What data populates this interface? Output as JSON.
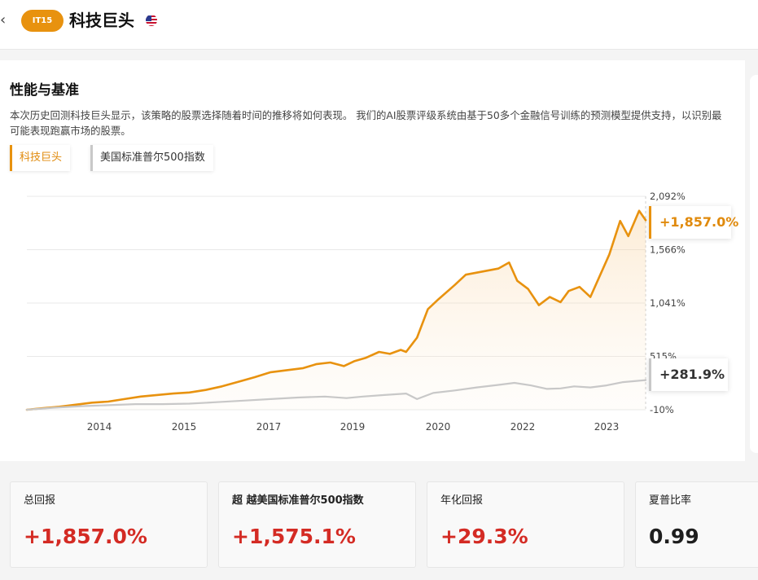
{
  "header": {
    "back_icon": "chevron-left-icon",
    "ticker": "IT15",
    "title": "科技巨头",
    "flag_icon": "us-flag-icon"
  },
  "section": {
    "title": "性能与基准",
    "description": "本次历史回测科技巨头显示，该策略的股票选择随着时间的推移将如何表现。 我们的AI股票评级系统由基于50多个金融信号训练的预测模型提供支持，以识别最可能表现跑赢市场的股票。"
  },
  "legend": {
    "strategy_label": "科技巨头",
    "benchmark_label": "美国标准普尔500指数"
  },
  "colors": {
    "strategy": "#e8920f",
    "benchmark": "#c8c8c8",
    "positive": "#d42b24"
  },
  "chart_data": {
    "type": "line",
    "x_ticks": [
      "2014",
      "2015",
      "2017",
      "2019",
      "2020",
      "2022",
      "2023"
    ],
    "y_ticks": [
      "2,092%",
      "1,566%",
      "1,041%",
      "515%",
      "-10%"
    ],
    "ylim": [
      -10,
      2092
    ],
    "grid": true,
    "series": [
      {
        "name": "科技巨头",
        "end_label": "+1,857.0%",
        "area": true,
        "points": [
          [
            2013.0,
            -10
          ],
          [
            2013.3,
            5
          ],
          [
            2013.6,
            20
          ],
          [
            2013.9,
            40
          ],
          [
            2014.2,
            60
          ],
          [
            2014.5,
            70
          ],
          [
            2014.8,
            95
          ],
          [
            2015.1,
            120
          ],
          [
            2015.4,
            135
          ],
          [
            2015.7,
            150
          ],
          [
            2016.0,
            160
          ],
          [
            2016.3,
            185
          ],
          [
            2016.6,
            220
          ],
          [
            2016.9,
            265
          ],
          [
            2017.2,
            310
          ],
          [
            2017.5,
            360
          ],
          [
            2017.8,
            380
          ],
          [
            2018.1,
            400
          ],
          [
            2018.35,
            440
          ],
          [
            2018.6,
            455
          ],
          [
            2018.85,
            420
          ],
          [
            2019.05,
            470
          ],
          [
            2019.25,
            500
          ],
          [
            2019.5,
            560
          ],
          [
            2019.7,
            540
          ],
          [
            2019.9,
            580
          ],
          [
            2020.0,
            560
          ],
          [
            2020.2,
            700
          ],
          [
            2020.4,
            980
          ],
          [
            2020.6,
            1080
          ],
          [
            2020.9,
            1220
          ],
          [
            2021.1,
            1320
          ],
          [
            2021.3,
            1340
          ],
          [
            2021.5,
            1360
          ],
          [
            2021.7,
            1380
          ],
          [
            2021.9,
            1440
          ],
          [
            2022.05,
            1260
          ],
          [
            2022.25,
            1180
          ],
          [
            2022.45,
            1020
          ],
          [
            2022.65,
            1100
          ],
          [
            2022.85,
            1050
          ],
          [
            2023.0,
            1160
          ],
          [
            2023.2,
            1200
          ],
          [
            2023.4,
            1100
          ],
          [
            2023.55,
            1280
          ],
          [
            2023.75,
            1520
          ],
          [
            2023.95,
            1850
          ],
          [
            2024.1,
            1700
          ],
          [
            2024.3,
            1950
          ],
          [
            2024.42,
            1857
          ]
        ]
      },
      {
        "name": "美国标准普尔500指数",
        "end_label": "+281.9%",
        "area": false,
        "points": [
          [
            2013.0,
            -10
          ],
          [
            2013.5,
            10
          ],
          [
            2014.0,
            25
          ],
          [
            2014.5,
            35
          ],
          [
            2015.0,
            45
          ],
          [
            2015.5,
            45
          ],
          [
            2016.0,
            50
          ],
          [
            2016.5,
            65
          ],
          [
            2017.0,
            80
          ],
          [
            2017.5,
            95
          ],
          [
            2018.0,
            110
          ],
          [
            2018.5,
            120
          ],
          [
            2018.9,
            105
          ],
          [
            2019.2,
            120
          ],
          [
            2019.6,
            135
          ],
          [
            2020.0,
            150
          ],
          [
            2020.2,
            95
          ],
          [
            2020.5,
            155
          ],
          [
            2020.9,
            180
          ],
          [
            2021.3,
            210
          ],
          [
            2021.7,
            235
          ],
          [
            2022.0,
            255
          ],
          [
            2022.3,
            230
          ],
          [
            2022.6,
            195
          ],
          [
            2022.85,
            200
          ],
          [
            2023.1,
            220
          ],
          [
            2023.4,
            210
          ],
          [
            2023.7,
            230
          ],
          [
            2024.0,
            262
          ],
          [
            2024.42,
            282
          ]
        ]
      }
    ]
  },
  "metrics": [
    {
      "label": "总回报",
      "value": "+1,857.0%"
    },
    {
      "label": "超 越美国标准普尔500指数",
      "value": "+1,575.1%"
    },
    {
      "label": "年化回报",
      "value": "+29.3%"
    },
    {
      "label": "夏普比率",
      "value": "0.99"
    }
  ]
}
